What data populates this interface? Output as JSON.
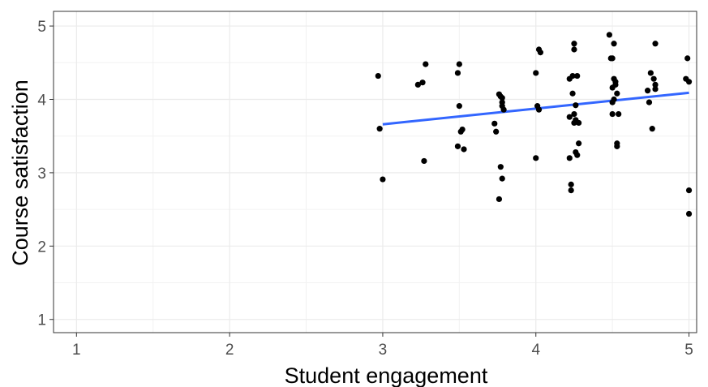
{
  "chart_data": {
    "type": "scatter",
    "title": "",
    "xlabel": "Student engagement",
    "ylabel": "Course satisfaction",
    "xlim": [
      0.85,
      5.05
    ],
    "ylim": [
      0.82,
      5.2
    ],
    "x_ticks": [
      1,
      2,
      3,
      4,
      5
    ],
    "y_ticks": [
      1,
      2,
      3,
      4,
      5
    ],
    "x_tick_labels": [
      "1",
      "2",
      "3",
      "4",
      "5"
    ],
    "y_tick_labels": [
      "1",
      "2",
      "3",
      "4",
      "5"
    ],
    "grid": true,
    "theme": "bw",
    "point_color": "#000000",
    "trend_color": "#3366ff",
    "trend_line": {
      "x": [
        3.0,
        5.0
      ],
      "y": [
        3.66,
        4.09
      ]
    },
    "series": [
      {
        "x": [
          2.97,
          2.98,
          3.0,
          3.23,
          3.26,
          3.27,
          3.28,
          3.49,
          3.49,
          3.5,
          3.5,
          3.51,
          3.52,
          3.53,
          3.73,
          3.74,
          3.76,
          3.76,
          3.77,
          3.77,
          3.78,
          3.78,
          3.78,
          3.79,
          3.78,
          4.0,
          4.0,
          4.01,
          4.02,
          4.02,
          4.03,
          4.22,
          4.22,
          4.22,
          4.23,
          4.23,
          4.24,
          4.24,
          4.25,
          4.25,
          4.25,
          4.25,
          4.26,
          4.26,
          4.26,
          4.27,
          4.27,
          4.28,
          4.28,
          4.48,
          4.49,
          4.5,
          4.5,
          4.5,
          4.5,
          4.51,
          4.51,
          4.51,
          4.52,
          4.52,
          4.53,
          4.53,
          4.53,
          4.54,
          4.73,
          4.74,
          4.75,
          4.76,
          4.77,
          4.78,
          4.78,
          4.78,
          4.98,
          4.99,
          5.0,
          5.0,
          5.0
        ],
        "y": [
          4.32,
          3.6,
          2.91,
          4.2,
          4.23,
          3.16,
          4.48,
          4.36,
          3.36,
          4.48,
          3.91,
          3.56,
          3.59,
          3.32,
          3.67,
          3.56,
          4.07,
          2.64,
          4.04,
          3.08,
          2.92,
          3.96,
          3.91,
          3.86,
          4.02,
          4.36,
          3.2,
          3.91,
          4.68,
          3.86,
          4.64,
          4.28,
          3.76,
          3.2,
          2.84,
          2.76,
          4.32,
          4.08,
          3.8,
          3.68,
          4.76,
          4.68,
          3.92,
          3.72,
          3.28,
          3.24,
          4.32,
          3.4,
          3.68,
          4.88,
          4.56,
          4.56,
          3.96,
          3.8,
          4.16,
          4.0,
          4.76,
          4.28,
          4.24,
          4.2,
          3.36,
          3.4,
          4.08,
          3.8,
          4.12,
          3.96,
          4.36,
          3.6,
          4.28,
          4.76,
          4.2,
          4.14,
          4.28,
          4.56,
          4.24,
          2.76,
          2.44
        ]
      }
    ]
  }
}
